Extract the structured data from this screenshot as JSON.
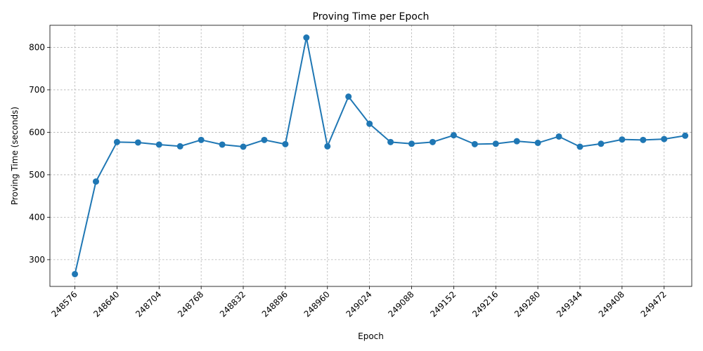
{
  "chart_data": {
    "type": "line",
    "title": "Proving Time per Epoch",
    "xlabel": "Epoch",
    "ylabel": "Proving Time (seconds)",
    "xlim": [
      248538,
      249514
    ],
    "ylim": [
      237,
      852
    ],
    "xticks": [
      248576,
      248640,
      248704,
      248768,
      248832,
      248896,
      248960,
      249024,
      249088,
      249152,
      249216,
      249280,
      249344,
      249408,
      249472
    ],
    "yticks": [
      300,
      400,
      500,
      600,
      700,
      800
    ],
    "grid": true,
    "color": "#1f77b4",
    "series": [
      {
        "x": [
          248576,
          248608,
          248640,
          248672,
          248704,
          248736,
          248768,
          248800,
          248832,
          248864,
          248896,
          248928,
          248960,
          248992,
          249024,
          249056,
          249088,
          249120,
          249152,
          249184,
          249216,
          249248,
          249280,
          249312,
          249344,
          249376,
          249408,
          249440,
          249472,
          249504
        ],
        "values": [
          266,
          484,
          577,
          576,
          571,
          567,
          582,
          571,
          566,
          582,
          572,
          823,
          567,
          684,
          620,
          577,
          573,
          577,
          593,
          572,
          573,
          579,
          575,
          590,
          566,
          573,
          583,
          582,
          584,
          592
        ]
      }
    ]
  }
}
